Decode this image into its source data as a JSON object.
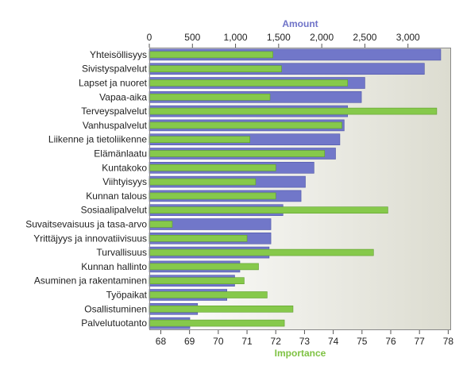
{
  "chart_data": {
    "type": "bar",
    "orientation": "horizontal",
    "categories": [
      "Yhteisöllisyys",
      "Sivistyspalvelut",
      "Lapset ja nuoret",
      "Vapaa-aika",
      "Terveyspalvelut",
      "Vanhuspalvelut",
      "Liikenne ja tietoliikenne",
      "Elämänlaatu",
      "Kuntakoko",
      "Viihtyisyys",
      "Kunnan talous",
      "Sosiaalipalvelut",
      "Suvaitsevaisuus ja tasa-arvo",
      "Yrittäjyys ja innovatiivisuus",
      "Turvallisuus",
      "Kunnan hallinto",
      "Asuminen ja rakentaminen",
      "Työpaikat",
      "Osallistuminen",
      "Palvelutuotanto"
    ],
    "series": [
      {
        "name": "Amount",
        "axis": "top",
        "color": "#7177c9",
        "values": [
          3380,
          3190,
          2500,
          2460,
          2300,
          2260,
          2210,
          2160,
          1910,
          1810,
          1760,
          1550,
          1410,
          1410,
          1390,
          1050,
          990,
          900,
          560,
          470
        ]
      },
      {
        "name": "Importance",
        "axis": "bottom",
        "color": "#86c94b",
        "values": [
          71.9,
          72.2,
          74.5,
          71.8,
          77.6,
          74.3,
          71.1,
          73.7,
          72.0,
          71.3,
          72.0,
          75.9,
          68.4,
          71.0,
          75.4,
          71.4,
          70.9,
          71.7,
          72.6,
          72.3
        ]
      }
    ],
    "x_top": {
      "title": "Amount",
      "range": [
        0,
        3500
      ],
      "ticks": [
        0,
        500,
        1000,
        1500,
        2000,
        2500,
        3000
      ],
      "tick_labels": [
        "0",
        "500",
        "1,000",
        "1,500",
        "2,000",
        "2,500",
        "3,000"
      ]
    },
    "x_bottom": {
      "title": "Importance",
      "range": [
        67.6,
        78.1
      ],
      "ticks": [
        68,
        69,
        70,
        71,
        72,
        73,
        74,
        75,
        76,
        77,
        78
      ],
      "tick_labels": [
        "68",
        "69",
        "70",
        "71",
        "72",
        "73",
        "74",
        "75",
        "76",
        "77",
        "78"
      ]
    },
    "grid": false,
    "legend": "none"
  }
}
